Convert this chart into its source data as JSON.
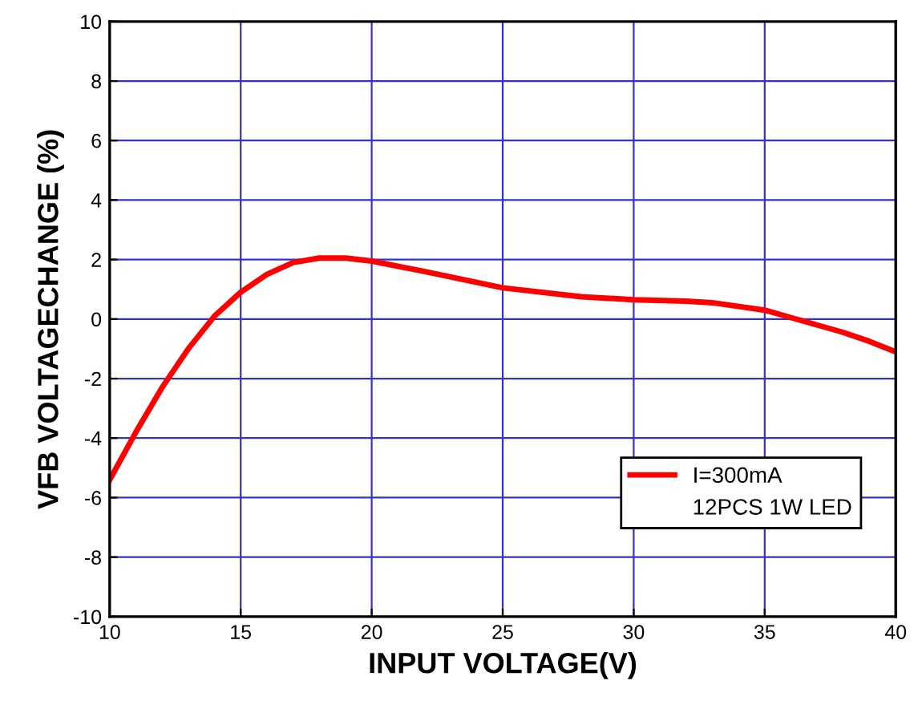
{
  "chart_data": {
    "type": "line",
    "xlabel": "INPUT VOLTAGE(V)",
    "ylabel": "VFB VOLTAGECHANGE (%)",
    "xlim": [
      10,
      40
    ],
    "xticks": [
      10,
      15,
      20,
      25,
      30,
      35,
      40
    ],
    "ylim": [
      -10,
      10
    ],
    "yticks": [
      -10,
      -8,
      -6,
      -4,
      -2,
      0,
      2,
      4,
      6,
      8,
      10
    ],
    "grid": true,
    "legend": "bottom right",
    "marker": "none",
    "line_style": "solid",
    "annotations": [
      "12PCS 1W LED"
    ],
    "series": [
      {
        "name": "I=300mA",
        "color": "#ff0000",
        "x": [
          10,
          11,
          12,
          13,
          14,
          15,
          16,
          17,
          18,
          19,
          20,
          22,
          25,
          28,
          30,
          32,
          33,
          35,
          36,
          37,
          38,
          39,
          40
        ],
        "values": [
          -5.4,
          -3.8,
          -2.3,
          -1.0,
          0.1,
          0.9,
          1.5,
          1.9,
          2.05,
          2.05,
          1.95,
          1.6,
          1.05,
          0.75,
          0.65,
          0.6,
          0.55,
          0.3,
          0.05,
          -0.2,
          -0.45,
          -0.75,
          -1.1
        ]
      }
    ]
  }
}
